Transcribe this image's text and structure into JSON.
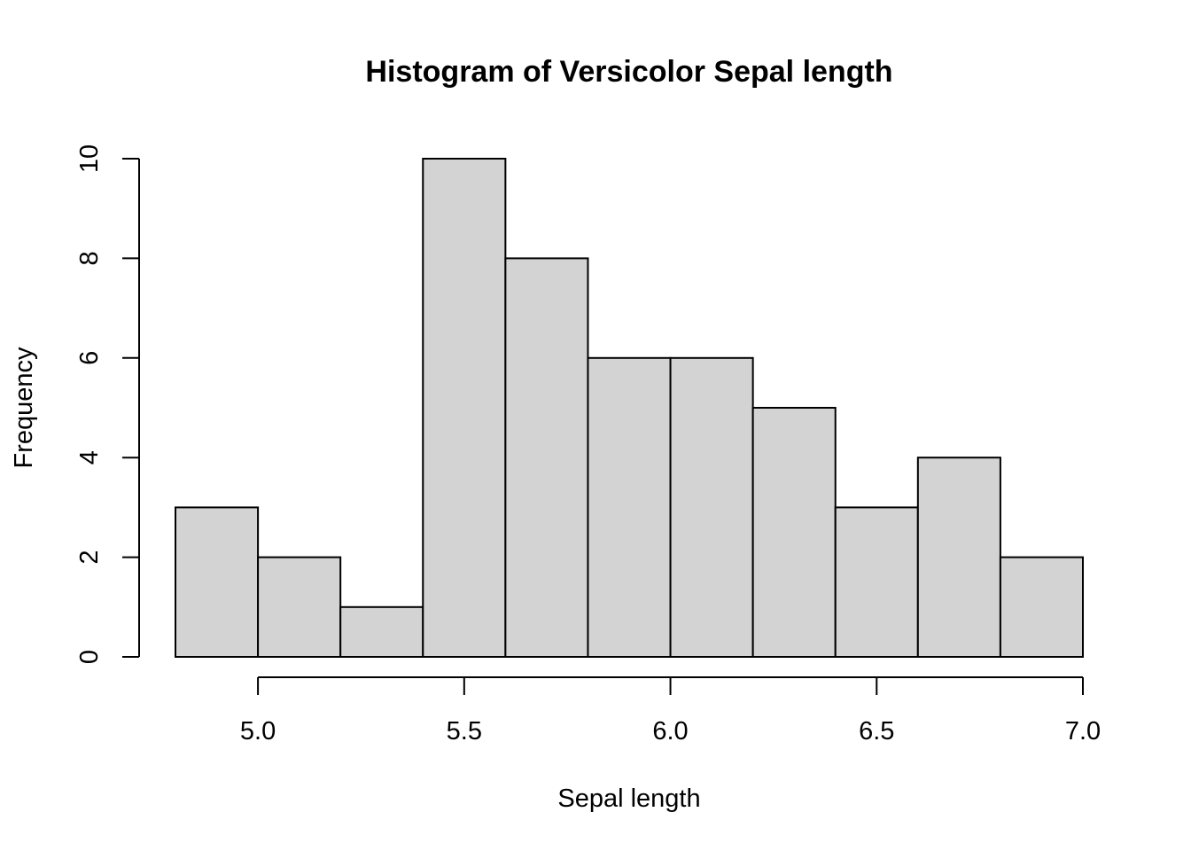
{
  "chart_data": {
    "type": "bar",
    "title": "Histogram of Versicolor Sepal length",
    "xlabel": "Sepal length",
    "ylabel": "Frequency",
    "bins": [
      {
        "start": 4.8,
        "end": 5.0,
        "count": 3
      },
      {
        "start": 5.0,
        "end": 5.2,
        "count": 2
      },
      {
        "start": 5.2,
        "end": 5.4,
        "count": 1
      },
      {
        "start": 5.4,
        "end": 5.6,
        "count": 10
      },
      {
        "start": 5.6,
        "end": 5.8,
        "count": 8
      },
      {
        "start": 5.8,
        "end": 6.0,
        "count": 6
      },
      {
        "start": 6.0,
        "end": 6.2,
        "count": 6
      },
      {
        "start": 6.2,
        "end": 6.4,
        "count": 5
      },
      {
        "start": 6.4,
        "end": 6.6,
        "count": 3
      },
      {
        "start": 6.6,
        "end": 6.8,
        "count": 4
      },
      {
        "start": 6.8,
        "end": 7.0,
        "count": 2
      }
    ],
    "xticks": [
      5.0,
      5.5,
      6.0,
      6.5,
      7.0
    ],
    "xtick_labels": [
      "5.0",
      "5.5",
      "6.0",
      "6.5",
      "7.0"
    ],
    "yticks": [
      0,
      2,
      4,
      6,
      8,
      10
    ],
    "ytick_labels": [
      "0",
      "2",
      "4",
      "6",
      "8",
      "10"
    ],
    "xlim": [
      4.8,
      7.0
    ],
    "ylim": [
      0,
      10
    ],
    "grid": false,
    "bar_color": "#d3d3d3",
    "edge_color": "#000000"
  }
}
